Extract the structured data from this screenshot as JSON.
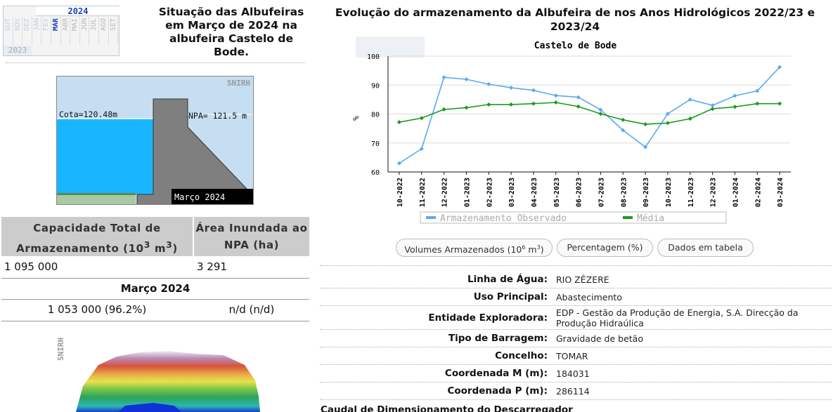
{
  "month_selector": {
    "back_arrow": "arrow-left-icon",
    "current_year": "2024",
    "prev_year": "2023",
    "months": [
      "OUT",
      "NOV",
      "DEZ",
      "JAN",
      "FEV",
      "MAR",
      "ABR",
      "MAI",
      "JUN",
      "JUL",
      "AGO",
      "SET"
    ],
    "active_month": "MAR"
  },
  "left_title": "Situação das Albufeiras em Março de 2024 na albufeira Castelo de Bode.",
  "dam_diagram": {
    "brand": "SNIRH",
    "cota": "Cota=120.48m",
    "npa": "NPA= 121.5 m",
    "date": "Março 2024"
  },
  "capacity": {
    "header_total": "Capacidade Total de Armazenamento (10",
    "header_total_sup1": "3",
    "header_total_mid": " m",
    "header_total_sup2": "3",
    "header_total_end": ")",
    "header_area": "Área Inundada ao NPA (ha)",
    "total_value": "1 095 000",
    "area_value": "3 291",
    "month_label": "Março 2024",
    "stored_value": "1 053 000 (96.2%)",
    "area_month_value": "n/d (n/d)"
  },
  "terrain": {
    "brand": "SNIRH"
  },
  "right_title": "Evolução do armazenamento da Albufeira de nos Anos Hidrológicos 2022/23 e 2023/24",
  "chart_data": {
    "type": "line",
    "title": "Castelo de Bode",
    "ylabel": "%",
    "ylim": [
      60,
      100
    ],
    "yticks": [
      60,
      70,
      80,
      90,
      100
    ],
    "categories": [
      "10-2022",
      "11-2022",
      "12-2022",
      "01-2023",
      "02-2023",
      "03-2023",
      "04-2023",
      "05-2023",
      "06-2023",
      "07-2023",
      "08-2023",
      "09-2023",
      "10-2023",
      "11-2023",
      "12-2023",
      "01-2024",
      "02-2024",
      "03-2024"
    ],
    "series": [
      {
        "name": "Armazenamento Observado",
        "color": "#5aa9f0",
        "values": [
          63,
          68,
          92.7,
          92,
          90.3,
          89.1,
          88.2,
          86.4,
          85.8,
          81.5,
          74.4,
          68.6,
          80.1,
          85,
          83,
          86.3,
          88,
          96.2
        ]
      },
      {
        "name": "Média",
        "color": "#1a9a1a",
        "values": [
          77.2,
          78.6,
          81.6,
          82.2,
          83.3,
          83.3,
          83.6,
          84,
          82.6,
          80.1,
          78,
          76.5,
          76.9,
          78.4,
          81.8,
          82.5,
          83.6,
          83.6
        ]
      }
    ],
    "grid": true,
    "legend_position": "bottom"
  },
  "buttons": {
    "volumes": "Volumes Armazenados (10",
    "volumes_sup": "6",
    "volumes_end": " m",
    "volumes_sup2": "3",
    "volumes_close": ")",
    "percent": "Percentagem (%)",
    "table": "Dados em tabela"
  },
  "info": [
    {
      "label": "Linha de Água:",
      "value": "RIO ZÊZERE"
    },
    {
      "label": "Uso Principal:",
      "value": "Abastecimento"
    },
    {
      "label": "Entidade Exploradora:",
      "value": "EDP - Gestão da Produção de Energia, S.A. Direcção da Produção Hidraúlica"
    },
    {
      "label": "Tipo de Barragem:",
      "value": "Gravidade de betão"
    },
    {
      "label": "Concelho:",
      "value": "TOMAR"
    },
    {
      "label": "Coordenada M (m):",
      "value": "184031"
    },
    {
      "label": "Coordenada P (m):",
      "value": "286114"
    }
  ],
  "bottom_label": "Caudal de Dimensionamento do Descarregador"
}
